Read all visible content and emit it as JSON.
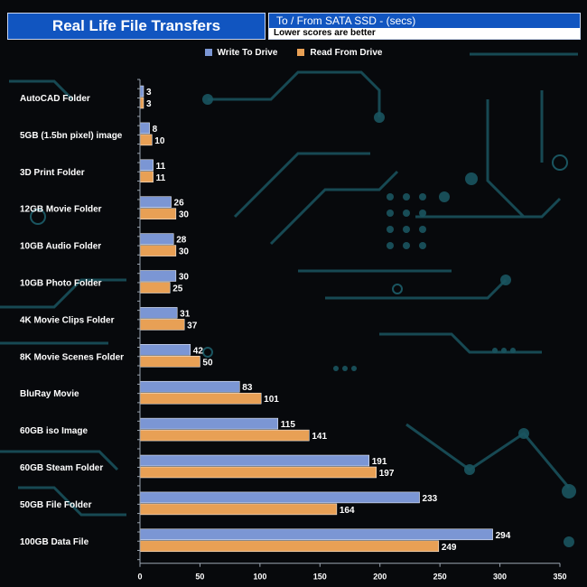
{
  "chart_data": {
    "type": "bar",
    "orientation": "horizontal",
    "title": "Real Life File Transfers",
    "subtitle": "To /  From SATA SSD - (secs)",
    "note": "Lower scores are better",
    "categories": [
      "AutoCAD Folder",
      "5GB (1.5bn pixel) image",
      "3D Print Folder",
      "12GB Movie Folder",
      "10GB Audio Folder",
      "10GB Photo Folder",
      "4K Movie Clips Folder",
      "8K Movie Scenes Folder",
      "BluRay Movie",
      "60GB iso Image",
      "60GB Steam Folder",
      "50GB File Folder",
      "100GB Data File"
    ],
    "series": [
      {
        "name": "Write To  Drive",
        "color": "#7b96d4",
        "values": [
          3,
          8,
          11,
          26,
          28,
          30,
          31,
          42,
          83,
          115,
          191,
          233,
          294
        ]
      },
      {
        "name": "Read From  Drive",
        "color": "#e8a055",
        "values": [
          3,
          10,
          11,
          30,
          30,
          25,
          37,
          50,
          101,
          141,
          197,
          164,
          249
        ]
      }
    ],
    "xlim": [
      0,
      350
    ],
    "xticks": [
      "0",
      "50",
      "100",
      "150",
      "200",
      "250",
      "300",
      "350"
    ],
    "grid": false,
    "legend": "top-center"
  }
}
